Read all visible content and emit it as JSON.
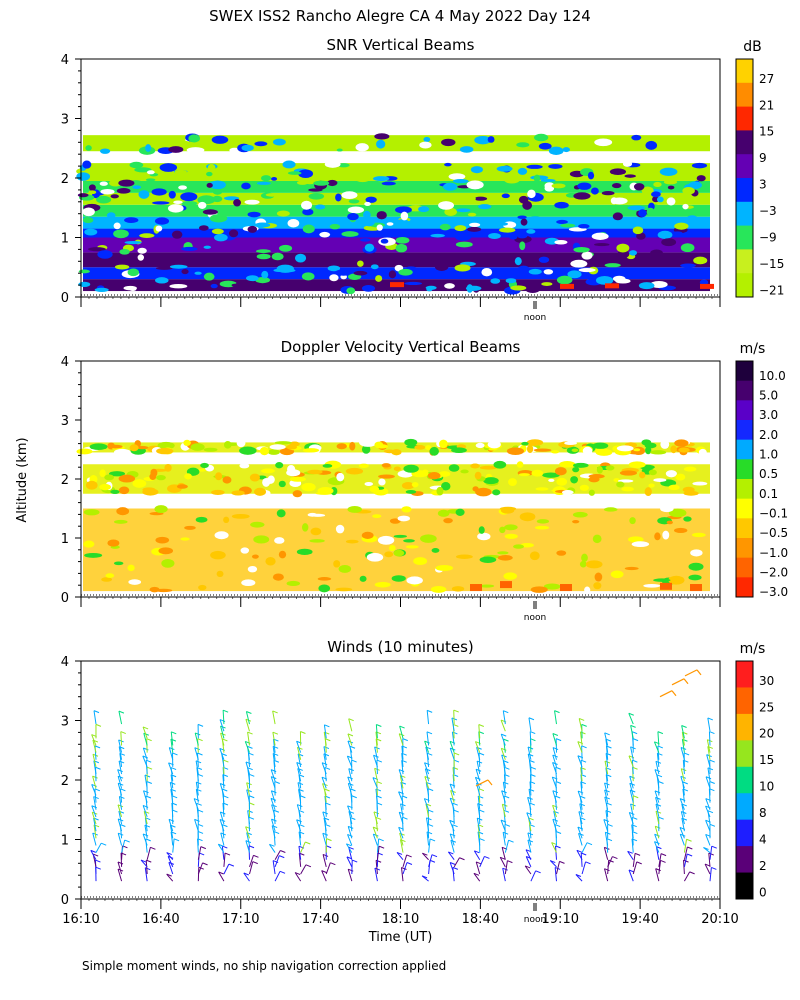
{
  "page_title": "SWEX ISS2 Rancho Alegre CA   4 May 2022 Day 124",
  "y_axis_label": "Altitude (km)",
  "footnote": "Simple moment winds, no ship navigation correction applied",
  "noon_label": "noon",
  "chart_data": [
    {
      "type": "heatmap",
      "title": "SNR Vertical Beams",
      "colorbar_unit": "dB",
      "colorbar_labels": [
        "27",
        "21",
        "15",
        "9",
        "3",
        "−3",
        "−9",
        "−15",
        "−21"
      ],
      "colorbar_colors": [
        "#ffd200",
        "#ff8c00",
        "#ff2800",
        "#46006e",
        "#6400b4",
        "#0028ff",
        "#00b4ff",
        "#28e65a",
        "#c8f01e",
        "#b4f000"
      ],
      "ylim": [
        0,
        4
      ],
      "yticks": [
        "0",
        "1",
        "2",
        "3",
        "4"
      ],
      "layers": [
        {
          "from": 0.1,
          "to": 0.3,
          "color": "#46006e"
        },
        {
          "from": 0.3,
          "to": 0.5,
          "color": "#0028ff"
        },
        {
          "from": 0.5,
          "to": 0.75,
          "color": "#46006e"
        },
        {
          "from": 0.75,
          "to": 1.0,
          "color": "#6400b4"
        },
        {
          "from": 1.0,
          "to": 1.15,
          "color": "#0028ff"
        },
        {
          "from": 1.15,
          "to": 1.35,
          "color": "#00b4ff"
        },
        {
          "from": 1.35,
          "to": 1.55,
          "color": "#28e65a"
        },
        {
          "from": 1.55,
          "to": 1.75,
          "color": "#b4f000"
        },
        {
          "from": 1.75,
          "to": 1.95,
          "color": "#28e65a"
        },
        {
          "from": 1.95,
          "to": 2.25,
          "color": "#b4f000"
        },
        {
          "from": 2.45,
          "to": 2.72,
          "color": "#b4f000"
        }
      ]
    },
    {
      "type": "heatmap",
      "title": "Doppler Velocity Vertical Beams",
      "colorbar_unit": "m/s",
      "colorbar_labels": [
        "10.0",
        "5.0",
        "3.0",
        "2.0",
        "1.0",
        "0.5",
        "0.1",
        "−0.1",
        "−0.5",
        "−1.0",
        "−2.0",
        "−3.0"
      ],
      "colorbar_colors": [
        "#1e003c",
        "#46006e",
        "#5a00c8",
        "#1428ff",
        "#00aaff",
        "#28dc28",
        "#b4f000",
        "#ffff00",
        "#ffc800",
        "#ff9600",
        "#ff6400",
        "#ff2800"
      ],
      "ylim": [
        0,
        4
      ],
      "yticks": [
        "0",
        "1",
        "2",
        "3",
        "4"
      ],
      "layers": [
        {
          "from": 0.1,
          "to": 1.5,
          "color": "#ffd23c"
        },
        {
          "from": 1.75,
          "to": 2.25,
          "color": "#e6f01e"
        },
        {
          "from": 2.45,
          "to": 2.62,
          "color": "#e6f01e"
        }
      ]
    },
    {
      "type": "wind-barbs",
      "title": "Winds (10 minutes)",
      "colorbar_unit": "m/s",
      "colorbar_labels": [
        "30",
        "25",
        "20",
        "15",
        "10",
        "8",
        "4",
        "2",
        "0"
      ],
      "colorbar_colors": [
        "#ff1e1e",
        "#ff6400",
        "#ffb400",
        "#96e61e",
        "#00dc82",
        "#00aaff",
        "#1e1eff",
        "#5a0078",
        "#000000"
      ],
      "ylim": [
        0,
        4
      ],
      "yticks": [
        "0",
        "1",
        "2",
        "3",
        "4"
      ],
      "x_axis_label": "Time (UT)",
      "xtick_labels": [
        "16:10",
        "16:40",
        "17:10",
        "17:40",
        "18:10",
        "18:40",
        "19:10",
        "19:40",
        "20:10"
      ]
    }
  ]
}
